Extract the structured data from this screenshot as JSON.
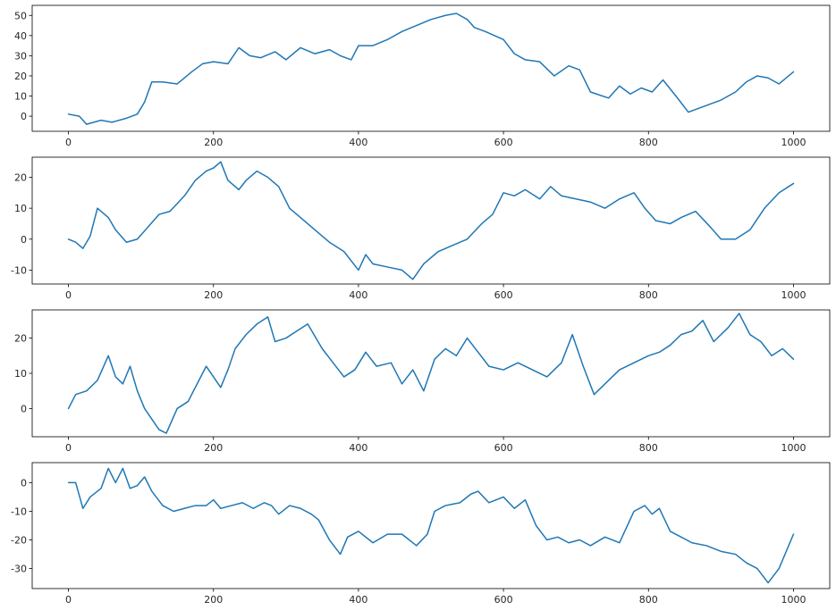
{
  "chart_data": [
    {
      "type": "line",
      "title": "",
      "xlabel": "",
      "ylabel": "",
      "xlim": [
        -50,
        1050
      ],
      "ylim": [
        -7.5,
        55
      ],
      "xticks": [
        0,
        200,
        400,
        600,
        800,
        1000
      ],
      "yticks": [
        0,
        10,
        20,
        30,
        40,
        50
      ],
      "grid": false,
      "series": [
        {
          "color": "#1f77b4",
          "x": [
            0,
            15,
            25,
            45,
            60,
            80,
            95,
            105,
            115,
            130,
            150,
            170,
            185,
            200,
            220,
            235,
            250,
            265,
            285,
            300,
            320,
            340,
            360,
            375,
            390,
            400,
            420,
            440,
            460,
            480,
            500,
            520,
            535,
            550,
            560,
            575,
            600,
            615,
            630,
            650,
            670,
            690,
            705,
            720,
            745,
            760,
            775,
            790,
            805,
            820,
            840,
            855,
            870,
            885,
            900,
            920,
            935,
            950,
            965,
            980,
            1000
          ],
          "y": [
            1,
            0,
            -4,
            -2,
            -3,
            -1,
            1,
            7,
            17,
            17,
            16,
            22,
            26,
            27,
            26,
            34,
            30,
            29,
            32,
            28,
            34,
            31,
            33,
            30,
            28,
            35,
            35,
            38,
            42,
            45,
            48,
            50,
            51,
            48,
            44,
            42,
            38,
            31,
            28,
            27,
            20,
            25,
            23,
            12,
            9,
            15,
            11,
            14,
            12,
            18,
            9,
            2,
            4,
            6,
            8,
            12,
            17,
            20,
            19,
            16,
            22
          ]
        }
      ]
    },
    {
      "type": "line",
      "title": "",
      "xlabel": "",
      "ylabel": "",
      "xlim": [
        -50,
        1050
      ],
      "ylim": [
        -14.5,
        26.5
      ],
      "xticks": [
        0,
        200,
        400,
        600,
        800,
        1000
      ],
      "yticks": [
        -10,
        0,
        10,
        20
      ],
      "grid": false,
      "series": [
        {
          "color": "#1f77b4",
          "x": [
            0,
            10,
            20,
            30,
            40,
            55,
            65,
            80,
            95,
            110,
            125,
            140,
            160,
            175,
            190,
            200,
            210,
            220,
            235,
            245,
            260,
            275,
            290,
            305,
            320,
            340,
            360,
            380,
            400,
            410,
            420,
            440,
            460,
            475,
            490,
            510,
            530,
            550,
            570,
            585,
            600,
            615,
            630,
            650,
            665,
            680,
            700,
            720,
            740,
            760,
            780,
            795,
            810,
            830,
            845,
            865,
            885,
            900,
            920,
            940,
            960,
            980,
            1000
          ],
          "y": [
            0,
            -1,
            -3,
            1,
            10,
            7,
            3,
            -1,
            0,
            4,
            8,
            9,
            14,
            19,
            22,
            23,
            25,
            19,
            16,
            19,
            22,
            20,
            17,
            10,
            7,
            3,
            -1,
            -4,
            -10,
            -5,
            -8,
            -9,
            -10,
            -13,
            -8,
            -4,
            -2,
            0,
            5,
            8,
            15,
            14,
            16,
            13,
            17,
            14,
            13,
            12,
            10,
            13,
            15,
            10,
            6,
            5,
            7,
            9,
            4,
            0,
            0,
            3,
            10,
            15,
            18
          ]
        }
      ]
    },
    {
      "type": "line",
      "title": "",
      "xlabel": "",
      "ylabel": "",
      "xlim": [
        -50,
        1050
      ],
      "ylim": [
        -8,
        28
      ],
      "xticks": [
        0,
        200,
        400,
        600,
        800,
        1000
      ],
      "yticks": [
        0,
        10,
        20
      ],
      "grid": false,
      "series": [
        {
          "color": "#1f77b4",
          "x": [
            0,
            10,
            25,
            40,
            55,
            65,
            75,
            85,
            95,
            105,
            115,
            125,
            135,
            150,
            165,
            180,
            190,
            200,
            210,
            220,
            230,
            245,
            260,
            275,
            285,
            300,
            315,
            330,
            350,
            365,
            380,
            395,
            410,
            425,
            445,
            460,
            475,
            490,
            505,
            520,
            535,
            550,
            565,
            580,
            600,
            620,
            640,
            660,
            680,
            695,
            710,
            725,
            740,
            760,
            780,
            800,
            815,
            830,
            845,
            860,
            875,
            890,
            910,
            925,
            940,
            955,
            970,
            985,
            1000
          ],
          "y": [
            0,
            4,
            5,
            8,
            15,
            9,
            7,
            12,
            5,
            0,
            -3,
            -6,
            -7,
            0,
            2,
            8,
            12,
            9,
            6,
            11,
            17,
            21,
            24,
            26,
            19,
            20,
            22,
            24,
            17,
            13,
            9,
            11,
            16,
            12,
            13,
            7,
            11,
            5,
            14,
            17,
            15,
            20,
            16,
            12,
            11,
            13,
            11,
            9,
            13,
            21,
            12,
            4,
            7,
            11,
            13,
            15,
            16,
            18,
            21,
            22,
            25,
            19,
            23,
            27,
            21,
            19,
            15,
            17,
            14
          ]
        }
      ]
    },
    {
      "type": "line",
      "title": "",
      "xlabel": "",
      "ylabel": "",
      "xlim": [
        -50,
        1050
      ],
      "ylim": [
        -37,
        7
      ],
      "xticks": [
        0,
        200,
        400,
        600,
        800,
        1000
      ],
      "yticks": [
        0,
        -10,
        -20,
        -30
      ],
      "grid": false,
      "series": [
        {
          "color": "#1f77b4",
          "x": [
            0,
            10,
            20,
            30,
            45,
            55,
            65,
            75,
            85,
            95,
            105,
            115,
            130,
            145,
            160,
            175,
            190,
            200,
            210,
            225,
            240,
            255,
            270,
            280,
            290,
            305,
            320,
            335,
            345,
            360,
            375,
            385,
            400,
            420,
            440,
            460,
            480,
            495,
            505,
            520,
            540,
            555,
            565,
            580,
            600,
            615,
            630,
            645,
            660,
            675,
            690,
            705,
            720,
            740,
            760,
            780,
            795,
            805,
            815,
            830,
            845,
            860,
            880,
            900,
            920,
            935,
            950,
            965,
            980,
            1000
          ],
          "y": [
            0,
            0,
            -9,
            -5,
            -2,
            5,
            0,
            5,
            -2,
            -1,
            2,
            -3,
            -8,
            -10,
            -9,
            -8,
            -8,
            -6,
            -9,
            -8,
            -7,
            -9,
            -7,
            -8,
            -11,
            -8,
            -9,
            -11,
            -13,
            -20,
            -25,
            -19,
            -17,
            -21,
            -18,
            -18,
            -22,
            -18,
            -10,
            -8,
            -7,
            -4,
            -3,
            -7,
            -5,
            -9,
            -6,
            -15,
            -20,
            -19,
            -21,
            -20,
            -22,
            -19,
            -21,
            -10,
            -8,
            -11,
            -9,
            -17,
            -19,
            -21,
            -22,
            -24,
            -25,
            -28,
            -30,
            -35,
            -30,
            -18
          ]
        }
      ]
    }
  ]
}
